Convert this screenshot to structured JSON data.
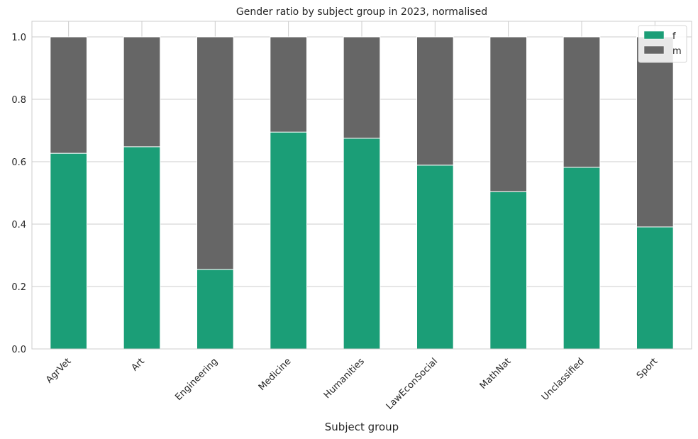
{
  "chart_data": {
    "type": "bar",
    "stacked": true,
    "title": "Gender ratio by subject group in 2023, normalised",
    "xlabel": "Subject group",
    "ylabel": "",
    "ylim": [
      0,
      1.05
    ],
    "yticks": [
      "0.0",
      "0.2",
      "0.4",
      "0.6",
      "0.8",
      "1.0"
    ],
    "grid": true,
    "legend_position": "top-right",
    "categories": [
      "AgrVet",
      "Art",
      "Engineering",
      "Medicine",
      "Humanities",
      "LawEconSocial",
      "MathNat",
      "Unclassified",
      "Sport"
    ],
    "series": [
      {
        "name": "f",
        "color": "#1b9e77",
        "values": [
          0.627,
          0.648,
          0.255,
          0.695,
          0.675,
          0.589,
          0.504,
          0.582,
          0.391
        ]
      },
      {
        "name": "m",
        "color": "#666666",
        "values": [
          0.373,
          0.352,
          0.745,
          0.305,
          0.325,
          0.411,
          0.496,
          0.418,
          0.609
        ]
      }
    ]
  }
}
